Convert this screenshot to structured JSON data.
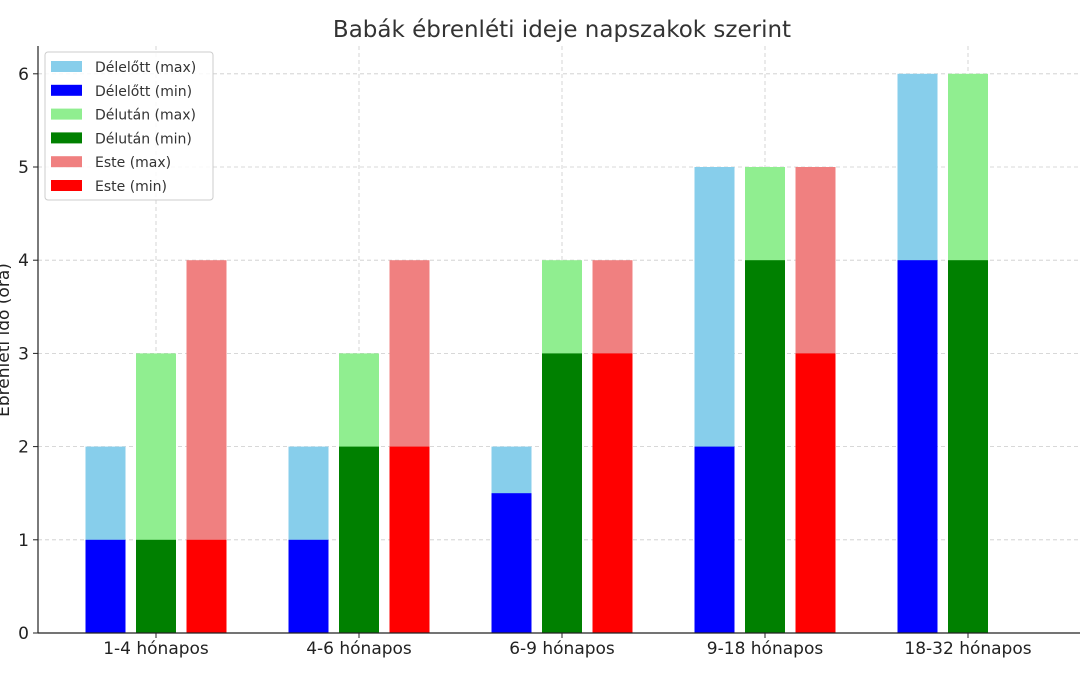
{
  "chart_data": {
    "type": "bar",
    "title": "Babák ébrenléti ideje napszakok szerint",
    "xlabel": "",
    "ylabel": "Ébrenléti idő (óra)",
    "ylim": [
      0,
      6.3
    ],
    "yticks": [
      0,
      1,
      2,
      3,
      4,
      5,
      6
    ],
    "grid": true,
    "legend_position": "top-left",
    "categories": [
      "1-4 hónapos",
      "4-6 hónapos",
      "6-9 hónapos",
      "9-18 hónapos",
      "18-32 hónapos"
    ],
    "groups": [
      {
        "max": {
          "name": "Délelőtt (max)",
          "color": "#87CEEB",
          "values": [
            2,
            2,
            2,
            5,
            6
          ]
        },
        "min": {
          "name": "Délelőtt (min)",
          "color": "#0000FF",
          "values": [
            1,
            1,
            1.5,
            2,
            4
          ]
        }
      },
      {
        "max": {
          "name": "Délután (max)",
          "color": "#90EE90",
          "values": [
            3,
            3,
            4,
            5,
            6
          ]
        },
        "min": {
          "name": "Délután (min)",
          "color": "#008000",
          "values": [
            1,
            2,
            3,
            4,
            4
          ]
        }
      },
      {
        "max": {
          "name": "Este (max)",
          "color": "#F08080",
          "values": [
            4,
            4,
            4,
            5,
            null
          ]
        },
        "min": {
          "name": "Este (min)",
          "color": "#FF0000",
          "values": [
            1,
            2,
            3,
            3,
            null
          ]
        }
      }
    ]
  }
}
